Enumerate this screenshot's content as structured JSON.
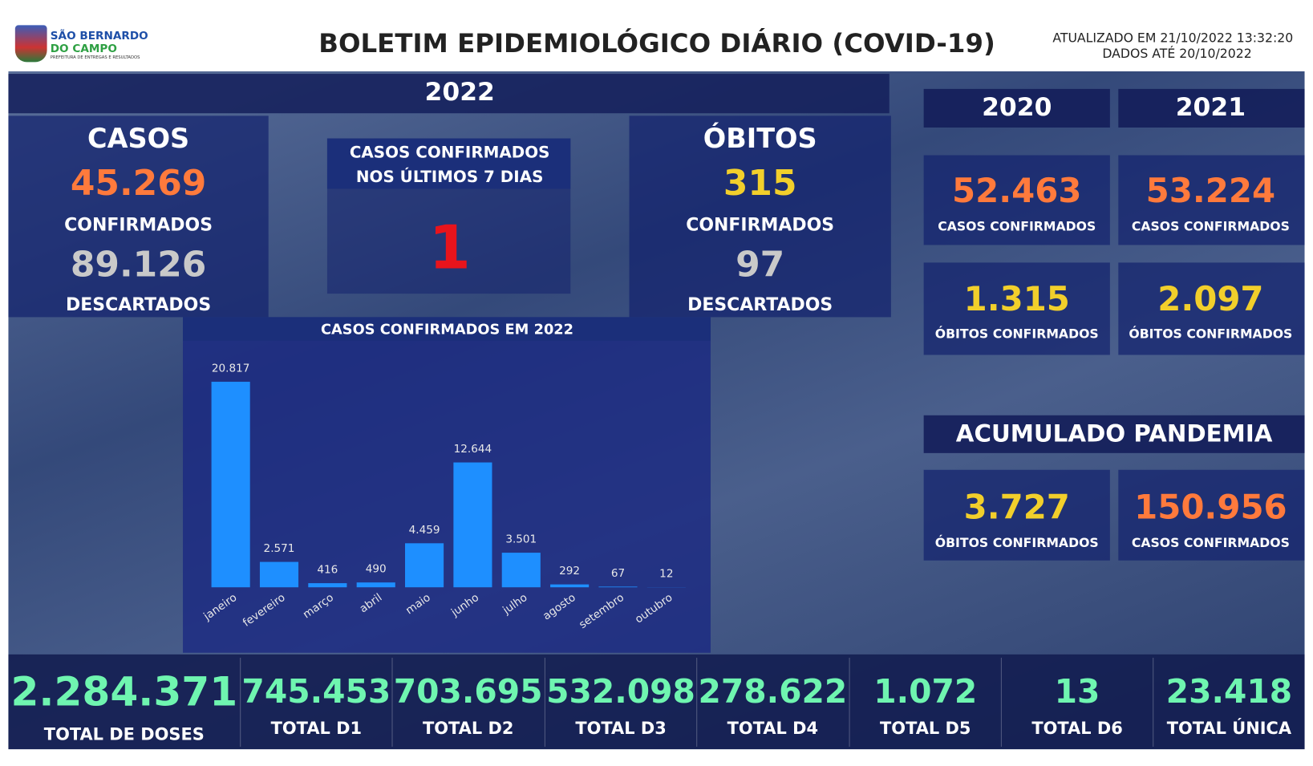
{
  "header": {
    "logo_line1": "SÃO BERNARDO",
    "logo_line2": "DO CAMPO",
    "logo_line3": "PREFEITURA DE ENTREGAS E RESULTADOS",
    "title": "BOLETIM EPIDEMIOLÓGICO DIÁRIO (COVID-19)",
    "updated": "ATUALIZADO EM 21/10/2022 13:32:20",
    "data_until": "DADOS ATÉ 20/10/2022"
  },
  "year_2022": {
    "title": "2022",
    "casos": {
      "title": "CASOS",
      "confirmed": "45.269",
      "confirmed_label": "CONFIRMADOS",
      "discarded": "89.126",
      "discarded_label": "DESCARTADOS"
    },
    "last_7_days": {
      "title_line1": "CASOS CONFIRMADOS",
      "title_line2": "NOS ÚLTIMOS 7 DIAS",
      "value": "1"
    },
    "obitos": {
      "title": "ÓBITOS",
      "confirmed": "315",
      "confirmed_label": "CONFIRMADOS",
      "discarded": "97",
      "discarded_label": "DESCARTADOS"
    }
  },
  "year_2020": {
    "title": "2020",
    "cases": "52.463",
    "cases_label": "CASOS CONFIRMADOS",
    "deaths": "1.315",
    "deaths_label": "ÓBITOS CONFIRMADOS"
  },
  "year_2021": {
    "title": "2021",
    "cases": "53.224",
    "cases_label": "CASOS CONFIRMADOS",
    "deaths": "2.097",
    "deaths_label": "ÓBITOS CONFIRMADOS"
  },
  "pandemic": {
    "title": "ACUMULADO PANDEMIA",
    "deaths": "3.727",
    "deaths_label": "ÓBITOS CONFIRMADOS",
    "cases": "150.956",
    "cases_label": "CASOS CONFIRMADOS"
  },
  "vaccines": [
    {
      "value": "2.284.371",
      "label": "TOTAL DE DOSES"
    },
    {
      "value": "745.453",
      "label": "TOTAL D1"
    },
    {
      "value": "703.695",
      "label": "TOTAL D2"
    },
    {
      "value": "532.098",
      "label": "TOTAL D3"
    },
    {
      "value": "278.622",
      "label": "TOTAL D4"
    },
    {
      "value": "1.072",
      "label": "TOTAL D5"
    },
    {
      "value": "13",
      "label": "TOTAL D6"
    },
    {
      "value": "23.418",
      "label": "TOTAL ÚNICA"
    }
  ],
  "chart_data": {
    "type": "bar",
    "title": "CASOS CONFIRMADOS EM 2022",
    "categories": [
      "janeiro",
      "fevereiro",
      "março",
      "abril",
      "maio",
      "junho",
      "julho",
      "agosto",
      "setembro",
      "outubro"
    ],
    "values": [
      20817,
      2571,
      416,
      490,
      4459,
      12644,
      3501,
      292,
      67,
      12
    ],
    "value_labels": [
      "20.817",
      "2.571",
      "416",
      "490",
      "4.459",
      "12.644",
      "3.501",
      "292",
      "67",
      "12"
    ],
    "color": "#1e8fff"
  }
}
